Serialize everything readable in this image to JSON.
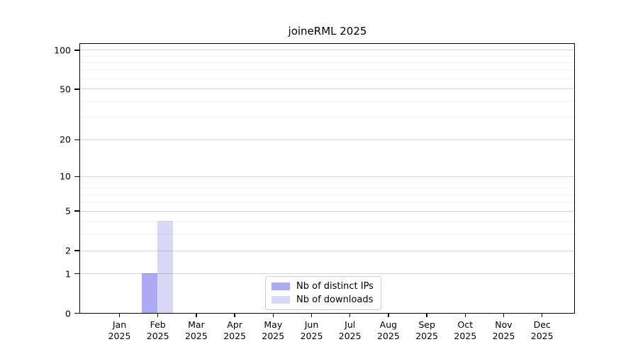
{
  "chart_data": {
    "type": "bar",
    "title": "joineRML 2025",
    "scale": "log1p",
    "xlabel": "",
    "ylabel": "",
    "categories": [
      "Jan 2025",
      "Feb 2025",
      "Mar 2025",
      "Apr 2025",
      "May 2025",
      "Jun 2025",
      "Jul 2025",
      "Aug 2025",
      "Sep 2025",
      "Oct 2025",
      "Nov 2025",
      "Dec 2025"
    ],
    "series": [
      {
        "name": "Nb of distinct IPs",
        "color": "#a9a9f4",
        "values": [
          0,
          1,
          0,
          0,
          0,
          0,
          0,
          0,
          0,
          0,
          0,
          0
        ]
      },
      {
        "name": "Nb of downloads",
        "color": "#d9d9f7",
        "values": [
          0,
          4,
          0,
          0,
          0,
          0,
          0,
          0,
          0,
          0,
          0,
          0
        ]
      }
    ],
    "y_major_ticks": [
      0,
      1,
      2,
      5,
      10,
      20,
      50,
      100
    ],
    "y_minor_gridlines": [
      3,
      4,
      6,
      7,
      8,
      9,
      30,
      40,
      60,
      70,
      80,
      90
    ],
    "ylim": [
      0,
      111
    ],
    "grid": true,
    "legend_position": "bottom-center",
    "colors": {
      "spine": "#000000",
      "background": "#ffffff"
    }
  }
}
